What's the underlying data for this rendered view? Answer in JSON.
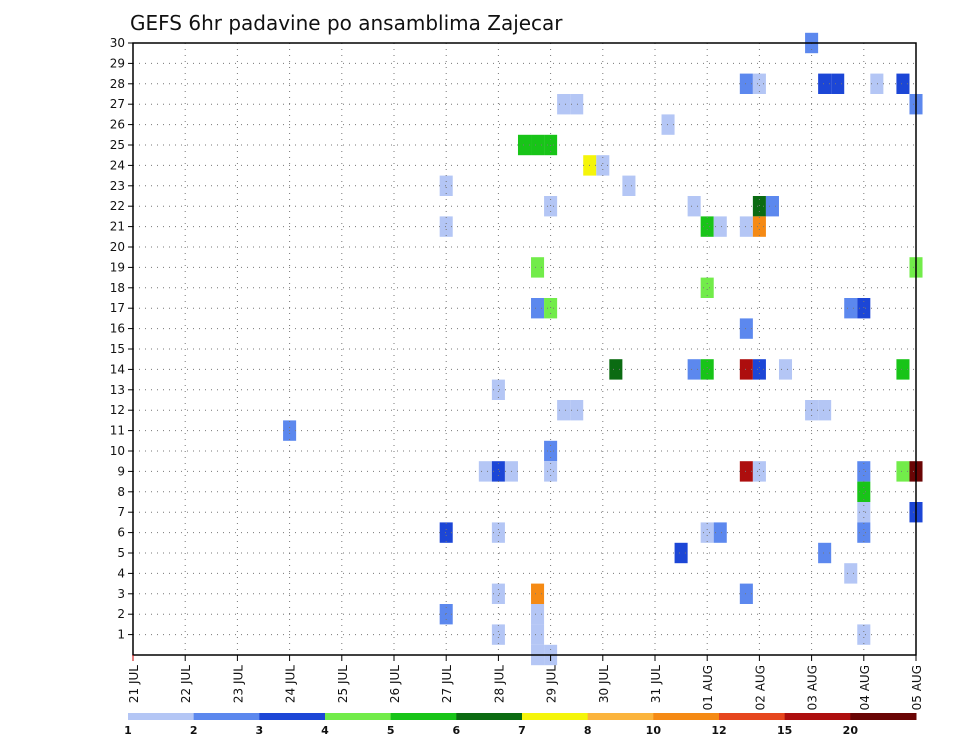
{
  "chart_data": {
    "type": "heatmap",
    "title": "GEFS 6hr padavine po ansamblima Zajecar",
    "y_ticks": [
      "1",
      "2",
      "3",
      "4",
      "5",
      "6",
      "7",
      "8",
      "9",
      "10",
      "11",
      "12",
      "13",
      "14",
      "15",
      "16",
      "17",
      "18",
      "19",
      "20",
      "21",
      "22",
      "23",
      "24",
      "25",
      "26",
      "27",
      "28",
      "29",
      "30"
    ],
    "x_ticks": [
      "21 JUL",
      "22 JUL",
      "23 JUL",
      "24 JUL",
      "25 JUL",
      "26 JUL",
      "27 JUL",
      "28 JUL",
      "29 JUL",
      "30 JUL",
      "31 JUL",
      "01 AUG",
      "02 AUG",
      "03 AUG",
      "04 AUG",
      "05 AUG"
    ],
    "y_range": [
      0,
      30
    ],
    "x_range_days": [
      0,
      15
    ],
    "grid": true,
    "colorbar": {
      "labels": [
        "1",
        "2",
        "3",
        "4",
        "5",
        "6",
        "7",
        "8",
        "10",
        "12",
        "15",
        "20"
      ],
      "colors": [
        "#b4c6f5",
        "#5c88ee",
        "#1c46d6",
        "#72ec4a",
        "#18c418",
        "#0b6b12",
        "#f5f50a",
        "#fbb43c",
        "#f58a14",
        "#e6461e",
        "#ad0e0e",
        "#6a0505"
      ]
    },
    "cells": [
      {
        "day": "28 JUL 18Z",
        "member": 0,
        "color": 0
      },
      {
        "day": "29 JUL 00Z",
        "member": 0,
        "color": 0
      },
      {
        "day": "28 JUL 00Z",
        "member": 1,
        "color": 0
      },
      {
        "day": "03 AUG 00Z",
        "member": 30,
        "color": 1
      },
      {
        "day": "01 AUG 18Z",
        "member": 28,
        "color": 1
      },
      {
        "day": "02 AUG 00Z",
        "member": 28,
        "color": 0
      },
      {
        "day": "03 AUG 06Z",
        "member": 28,
        "color": 2
      },
      {
        "day": "03 AUG 12Z",
        "member": 28,
        "color": 2
      },
      {
        "day": "04 AUG 06Z",
        "member": 28,
        "color": 0
      },
      {
        "day": "04 AUG 18Z",
        "member": 28,
        "color": 2
      },
      {
        "day": "29 JUL 06Z",
        "member": 27,
        "color": 0
      },
      {
        "day": "29 JUL 12Z",
        "member": 27,
        "color": 0
      },
      {
        "day": "05 AUG 00Z",
        "member": 27,
        "color": 1
      },
      {
        "day": "31 JUL 06Z",
        "member": 26,
        "color": 0
      },
      {
        "day": "28 JUL 12Z",
        "member": 25,
        "color": 4
      },
      {
        "day": "28 JUL 18Z",
        "member": 25,
        "color": 4
      },
      {
        "day": "29 JUL 00Z",
        "member": 25,
        "color": 4
      },
      {
        "day": "29 JUL 18Z",
        "member": 24,
        "color": 6
      },
      {
        "day": "30 JUL 00Z",
        "member": 24,
        "color": 0
      },
      {
        "day": "27 JUL 00Z",
        "member": 23,
        "color": 0
      },
      {
        "day": "30 JUL 12Z",
        "member": 23,
        "color": 0
      },
      {
        "day": "29 JUL 00Z",
        "member": 22,
        "color": 0
      },
      {
        "day": "31 JUL 18Z",
        "member": 22,
        "color": 0
      },
      {
        "day": "02 AUG 00Z",
        "member": 22,
        "color": 5
      },
      {
        "day": "02 AUG 06Z",
        "member": 22,
        "color": 1
      },
      {
        "day": "27 JUL 00Z",
        "member": 21,
        "color": 0
      },
      {
        "day": "01 AUG 00Z",
        "member": 21,
        "color": 4
      },
      {
        "day": "01 AUG 06Z",
        "member": 21,
        "color": 0
      },
      {
        "day": "01 AUG 18Z",
        "member": 21,
        "color": 0
      },
      {
        "day": "02 AUG 00Z",
        "member": 21,
        "color": 8
      },
      {
        "day": "28 JUL 18Z",
        "member": 19,
        "color": 3
      },
      {
        "day": "05 AUG 00Z",
        "member": 19,
        "color": 3
      },
      {
        "day": "01 AUG 00Z",
        "member": 18,
        "color": 3
      },
      {
        "day": "28 JUL 18Z",
        "member": 17,
        "color": 1
      },
      {
        "day": "29 JUL 00Z",
        "member": 17,
        "color": 3
      },
      {
        "day": "03 AUG 18Z",
        "member": 17,
        "color": 1
      },
      {
        "day": "04 AUG 00Z",
        "member": 17,
        "color": 2
      },
      {
        "day": "01 AUG 18Z",
        "member": 16,
        "color": 1
      },
      {
        "day": "30 JUL 06Z",
        "member": 14,
        "color": 5
      },
      {
        "day": "31 JUL 18Z",
        "member": 14,
        "color": 1
      },
      {
        "day": "01 AUG 00Z",
        "member": 14,
        "color": 4
      },
      {
        "day": "01 AUG 18Z",
        "member": 14,
        "color": 10
      },
      {
        "day": "02 AUG 00Z",
        "member": 14,
        "color": 2
      },
      {
        "day": "02 AUG 12Z",
        "member": 14,
        "color": 0
      },
      {
        "day": "04 AUG 18Z",
        "member": 14,
        "color": 4
      },
      {
        "day": "28 JUL 00Z",
        "member": 13,
        "color": 0
      },
      {
        "day": "29 JUL 06Z",
        "member": 12,
        "color": 0
      },
      {
        "day": "29 JUL 12Z",
        "member": 12,
        "color": 0
      },
      {
        "day": "03 AUG 00Z",
        "member": 12,
        "color": 0
      },
      {
        "day": "03 AUG 06Z",
        "member": 12,
        "color": 0
      },
      {
        "day": "24 JUL 00Z",
        "member": 11,
        "color": 1
      },
      {
        "day": "29 JUL 00Z",
        "member": 10,
        "color": 1
      },
      {
        "day": "27 JUL 18Z",
        "member": 9,
        "color": 0
      },
      {
        "day": "28 JUL 00Z",
        "member": 9,
        "color": 2
      },
      {
        "day": "28 JUL 06Z",
        "member": 9,
        "color": 0
      },
      {
        "day": "29 JUL 00Z",
        "member": 9,
        "color": 0
      },
      {
        "day": "01 AUG 18Z",
        "member": 9,
        "color": 10
      },
      {
        "day": "02 AUG 00Z",
        "member": 9,
        "color": 0
      },
      {
        "day": "04 AUG 00Z",
        "member": 9,
        "color": 1
      },
      {
        "day": "04 AUG 18Z",
        "member": 9,
        "color": 3
      },
      {
        "day": "05 AUG 00Z",
        "member": 9,
        "color": 11
      },
      {
        "day": "04 AUG 00Z",
        "member": 8,
        "color": 4
      },
      {
        "day": "04 AUG 00Z",
        "member": 7,
        "color": 0
      },
      {
        "day": "05 AUG 00Z",
        "member": 7,
        "color": 2
      },
      {
        "day": "27 JUL 00Z",
        "member": 6,
        "color": 2
      },
      {
        "day": "28 JUL 00Z",
        "member": 6,
        "color": 0
      },
      {
        "day": "01 AUG 00Z",
        "member": 6,
        "color": 0
      },
      {
        "day": "01 AUG 06Z",
        "member": 6,
        "color": 1
      },
      {
        "day": "04 AUG 00Z",
        "member": 6,
        "color": 1
      },
      {
        "day": "31 JUL 12Z",
        "member": 5,
        "color": 2
      },
      {
        "day": "03 AUG 06Z",
        "member": 5,
        "color": 1
      },
      {
        "day": "03 AUG 18Z",
        "member": 4,
        "color": 0
      },
      {
        "day": "28 JUL 00Z",
        "member": 3,
        "color": 0
      },
      {
        "day": "28 JUL 18Z",
        "member": 3,
        "color": 8
      },
      {
        "day": "01 AUG 18Z",
        "member": 3,
        "color": 1
      },
      {
        "day": "27 JUL 00Z",
        "member": 2,
        "color": 1
      },
      {
        "day": "28 JUL 18Z",
        "member": 2,
        "color": 0
      },
      {
        "day": "28 JUL 18Z",
        "member": 1,
        "color": 0
      },
      {
        "day": "04 AUG 00Z",
        "member": 1,
        "color": 0
      }
    ]
  }
}
